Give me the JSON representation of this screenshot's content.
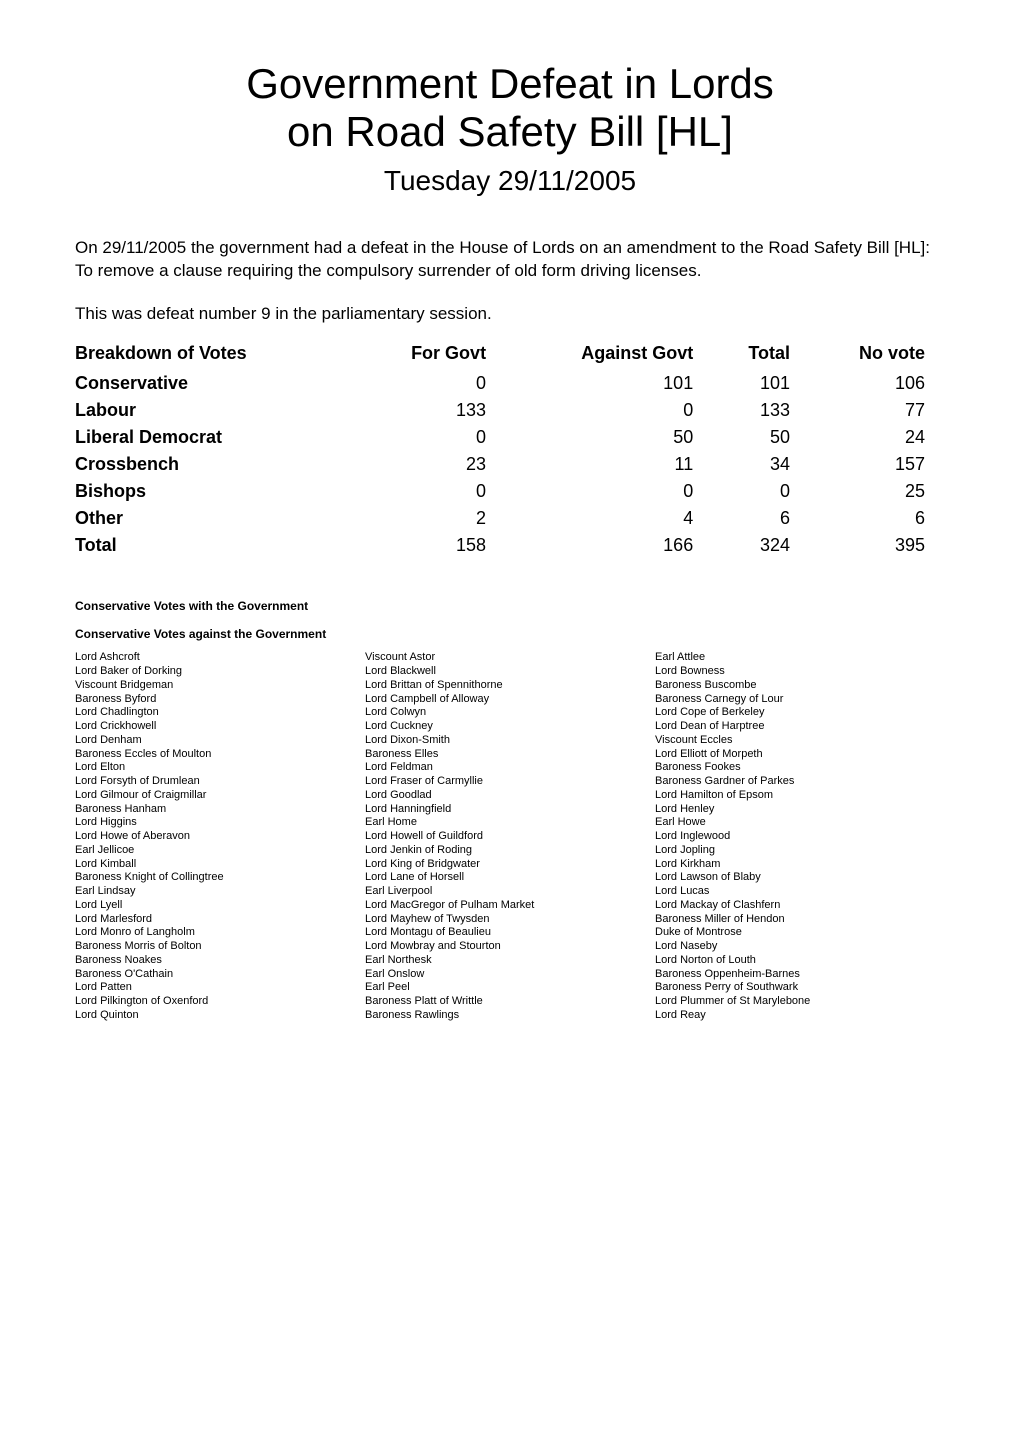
{
  "title_line1": "Government Defeat in Lords",
  "title_line2": "on Road Safety Bill [HL]",
  "date": "Tuesday 29/11/2005",
  "intro": "On 29/11/2005 the government had a defeat in the House of Lords on an amendment to the Road Safety Bill [HL]: To remove a clause requiring the compulsory surrender of old form driving licenses.",
  "defeat_number_text": "This was defeat number 9 in the parliamentary session.",
  "votes_table": {
    "headers": [
      "Breakdown of Votes",
      "For Govt",
      "Against Govt",
      "Total",
      "No vote"
    ],
    "rows": [
      {
        "label": "Conservative",
        "for": "0",
        "against": "101",
        "total": "101",
        "novote": "106"
      },
      {
        "label": "Labour",
        "for": "133",
        "against": "0",
        "total": "133",
        "novote": "77"
      },
      {
        "label": "Liberal Democrat",
        "for": "0",
        "against": "50",
        "total": "50",
        "novote": "24"
      },
      {
        "label": "Crossbench",
        "for": "23",
        "against": "11",
        "total": "34",
        "novote": "157"
      },
      {
        "label": "Bishops",
        "for": "0",
        "against": "0",
        "total": "0",
        "novote": "25"
      },
      {
        "label": "Other",
        "for": "2",
        "against": "4",
        "total": "6",
        "novote": "6"
      },
      {
        "label": "Total",
        "for": "158",
        "against": "166",
        "total": "324",
        "novote": "395"
      }
    ]
  },
  "section_with_heading": "Conservative Votes with the Government",
  "section_against_heading": "Conservative Votes against the Government",
  "members": {
    "col1": [
      "Lord Ashcroft",
      "Lord Baker of Dorking",
      "Viscount Bridgeman",
      "Baroness Byford",
      "Lord Chadlington",
      "Lord Crickhowell",
      "Lord Denham",
      "Baroness Eccles of Moulton",
      "Lord Elton",
      "Lord Forsyth of Drumlean",
      "Lord Gilmour of Craigmillar",
      "Baroness Hanham",
      "Lord Higgins",
      "Lord Howe of Aberavon",
      "Earl Jellicoe",
      "Lord Kimball",
      "Baroness Knight of Collingtree",
      "Earl Lindsay",
      "Lord Lyell",
      "Lord Marlesford",
      "Lord Monro of Langholm",
      "Baroness Morris of Bolton",
      "Baroness Noakes",
      "Baroness O'Cathain",
      "Lord Patten",
      "Lord Pilkington of Oxenford",
      "Lord Quinton"
    ],
    "col2": [
      "Viscount Astor",
      "Lord Blackwell",
      "Lord Brittan of Spennithorne",
      "Lord Campbell of Alloway",
      "Lord Colwyn",
      "Lord Cuckney",
      "Lord Dixon-Smith",
      "Baroness Elles",
      "Lord Feldman",
      "Lord Fraser of Carmyllie",
      "Lord Goodlad",
      "Lord Hanningfield",
      "Earl Home",
      "Lord Howell of Guildford",
      "Lord Jenkin of Roding",
      "Lord King of Bridgwater",
      "Lord Lane of Horsell",
      "Earl Liverpool",
      "Lord MacGregor of Pulham Market",
      "Lord Mayhew of Twysden",
      "Lord Montagu of Beaulieu",
      "Lord Mowbray and Stourton",
      "Earl Northesk",
      "Earl Onslow",
      "Earl Peel",
      "Baroness Platt of Writtle",
      "Baroness Rawlings"
    ],
    "col3": [
      "Earl Attlee",
      "Lord Bowness",
      "Baroness Buscombe",
      "Baroness Carnegy of Lour",
      "Lord Cope of Berkeley",
      "Lord Dean of Harptree",
      "Viscount Eccles",
      "Lord Elliott of Morpeth",
      "Baroness Fookes",
      "Baroness Gardner of Parkes",
      "Lord Hamilton of Epsom",
      "Lord Henley",
      "Earl Howe",
      "Lord Inglewood",
      "Lord Jopling",
      "Lord Kirkham",
      "Lord Lawson of Blaby",
      "Lord Lucas",
      "Lord Mackay of Clashfern",
      "Baroness Miller of Hendon",
      "Duke of Montrose",
      "Lord Naseby",
      "Lord Norton of Louth",
      "Baroness Oppenheim-Barnes",
      "Baroness Perry of Southwark",
      "Lord Plummer of St Marylebone",
      "Lord Reay"
    ]
  },
  "colors": {
    "text": "#000000",
    "background": "#ffffff"
  },
  "fonts": {
    "title_size_pt": 32,
    "date_size_pt": 21,
    "body_size_pt": 13,
    "table_size_pt": 13,
    "section_heading_size_pt": 9,
    "members_size_pt": 8
  }
}
